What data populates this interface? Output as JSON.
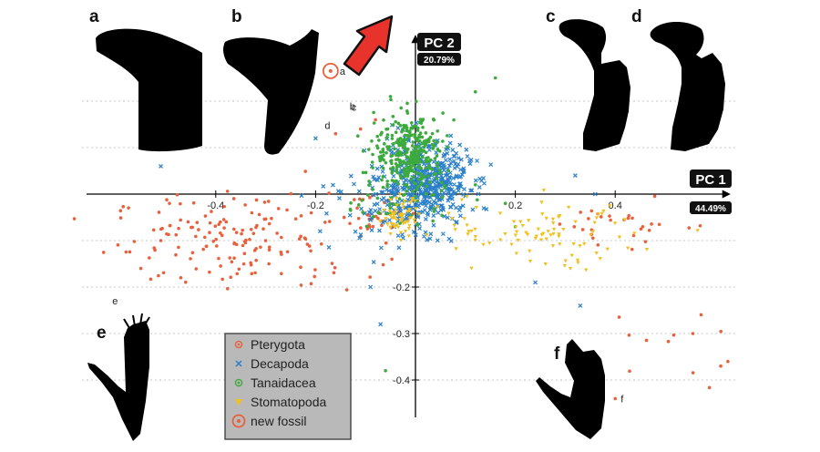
{
  "chart_data": {
    "type": "scatter",
    "x_axis": {
      "title": "PC 1",
      "variance": "44.49%",
      "ticks": [
        -0.4,
        -0.2,
        0.2,
        0.4
      ],
      "range": [
        -0.66,
        0.63
      ]
    },
    "y_axis": {
      "title": "PC 2",
      "variance": "20.79%",
      "ticks": [
        -0.2,
        -0.3,
        -0.4
      ],
      "range": [
        -0.45,
        0.28
      ]
    },
    "grid": "horizontal dotted",
    "legend_placement": "bottom-left",
    "series": [
      {
        "name": "Pterygota",
        "color": "#e8603c",
        "marker": "dot",
        "clusters": [
          {
            "cx": -0.35,
            "cy": -0.1,
            "sx": 0.13,
            "sy": 0.05,
            "n": 160
          },
          {
            "cx": -0.08,
            "cy": -0.04,
            "sx": 0.03,
            "sy": 0.025,
            "n": 30
          },
          {
            "cx": 0.43,
            "cy": -0.06,
            "sx": 0.07,
            "sy": 0.03,
            "n": 30
          },
          {
            "cx": 0.45,
            "cy": -0.32,
            "sx": 0.09,
            "sy": 0.05,
            "n": 14
          }
        ],
        "points": [
          [
            -0.16,
            0.13
          ],
          [
            -0.11,
            0.14
          ],
          [
            -0.08,
            0.16
          ],
          [
            -0.55,
            -0.16
          ],
          [
            -0.51,
            -0.1
          ],
          [
            -0.47,
            -0.18
          ],
          [
            0.4,
            -0.44
          ]
        ]
      },
      {
        "name": "Decapoda",
        "color": "#2a7fc9",
        "marker": "x",
        "clusters": [
          {
            "cx": 0.02,
            "cy": 0.02,
            "sx": 0.045,
            "sy": 0.045,
            "n": 500
          },
          {
            "cx": -0.06,
            "cy": -0.03,
            "sx": 0.07,
            "sy": 0.035,
            "n": 60
          }
        ],
        "points": [
          [
            -0.51,
            0.06
          ],
          [
            -0.2,
            0.12
          ],
          [
            -0.09,
            -0.2
          ],
          [
            -0.07,
            -0.28
          ],
          [
            0.24,
            -0.19
          ],
          [
            0.33,
            -0.24
          ],
          [
            0.32,
            0.04
          ],
          [
            0.36,
            0.0
          ]
        ]
      },
      {
        "name": "Tanaidacea",
        "color": "#3caa3c",
        "marker": "dot",
        "clusters": [
          {
            "cx": -0.01,
            "cy": 0.09,
            "sx": 0.035,
            "sy": 0.04,
            "n": 320
          },
          {
            "cx": -0.04,
            "cy": -0.01,
            "sx": 0.06,
            "sy": 0.03,
            "n": 50
          }
        ],
        "points": [
          [
            0.12,
            0.22
          ],
          [
            0.16,
            0.25
          ],
          [
            -0.05,
            0.21
          ],
          [
            0.12,
            0.02
          ],
          [
            0.18,
            -0.02
          ],
          [
            0.2,
            -0.07
          ],
          [
            -0.06,
            -0.38
          ]
        ]
      },
      {
        "name": "Stomatopoda",
        "color": "#f0c01e",
        "marker": "triangle",
        "clusters": [
          {
            "cx": -0.03,
            "cy": -0.05,
            "sx": 0.018,
            "sy": 0.02,
            "n": 60
          },
          {
            "cx": 0.28,
            "cy": -0.09,
            "sx": 0.08,
            "sy": 0.035,
            "n": 75
          },
          {
            "cx": 0.09,
            "cy": -0.08,
            "sx": 0.04,
            "sy": 0.03,
            "n": 20
          }
        ],
        "points": []
      },
      {
        "name": "new fossil",
        "color": "#e8603c",
        "marker": "ring",
        "clusters": [],
        "points": [
          [
            -0.17,
            0.265
          ]
        ]
      }
    ],
    "annotations": [
      {
        "text": "a",
        "x": -0.17,
        "y": 0.265
      },
      {
        "text": "b",
        "x": -0.11,
        "y": 0.17
      },
      {
        "text": "c",
        "x": -0.11,
        "y": 0.16
      },
      {
        "text": "d",
        "x": -0.16,
        "y": 0.14
      },
      {
        "text": "e",
        "x": -0.6,
        "y": -0.21
      },
      {
        "text": "f",
        "x": 0.4,
        "y": -0.44
      }
    ],
    "panel_letters": [
      "a",
      "b",
      "c",
      "d",
      "e",
      "f"
    ]
  }
}
